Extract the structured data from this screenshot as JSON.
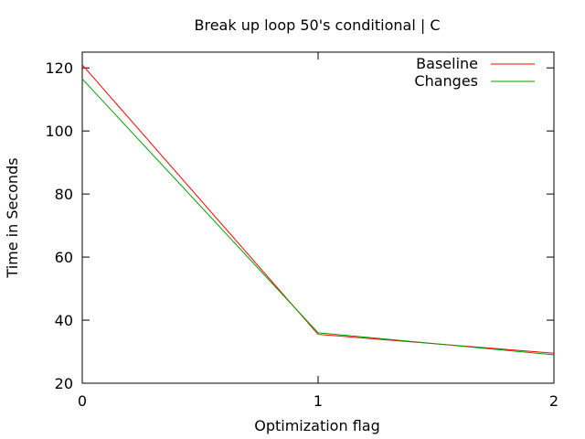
{
  "chart_data": {
    "type": "line",
    "title": "Break up loop 50's conditional | C",
    "xlabel": "Optimization flag",
    "ylabel": "Time in Seconds",
    "x": [
      0,
      1,
      2
    ],
    "xticks": [
      "0",
      "1",
      "2"
    ],
    "yticks": [
      "20",
      "40",
      "60",
      "80",
      "100",
      "120"
    ],
    "xlim": [
      0,
      2
    ],
    "ylim": [
      20,
      125
    ],
    "grid": false,
    "legend_position": "top-right",
    "series": [
      {
        "name": "Baseline",
        "color": "#ff0000",
        "values": [
          121.0,
          35.5,
          29.5
        ]
      },
      {
        "name": "Changes",
        "color": "#00a000",
        "values": [
          116.5,
          36.0,
          29.0
        ]
      }
    ]
  }
}
